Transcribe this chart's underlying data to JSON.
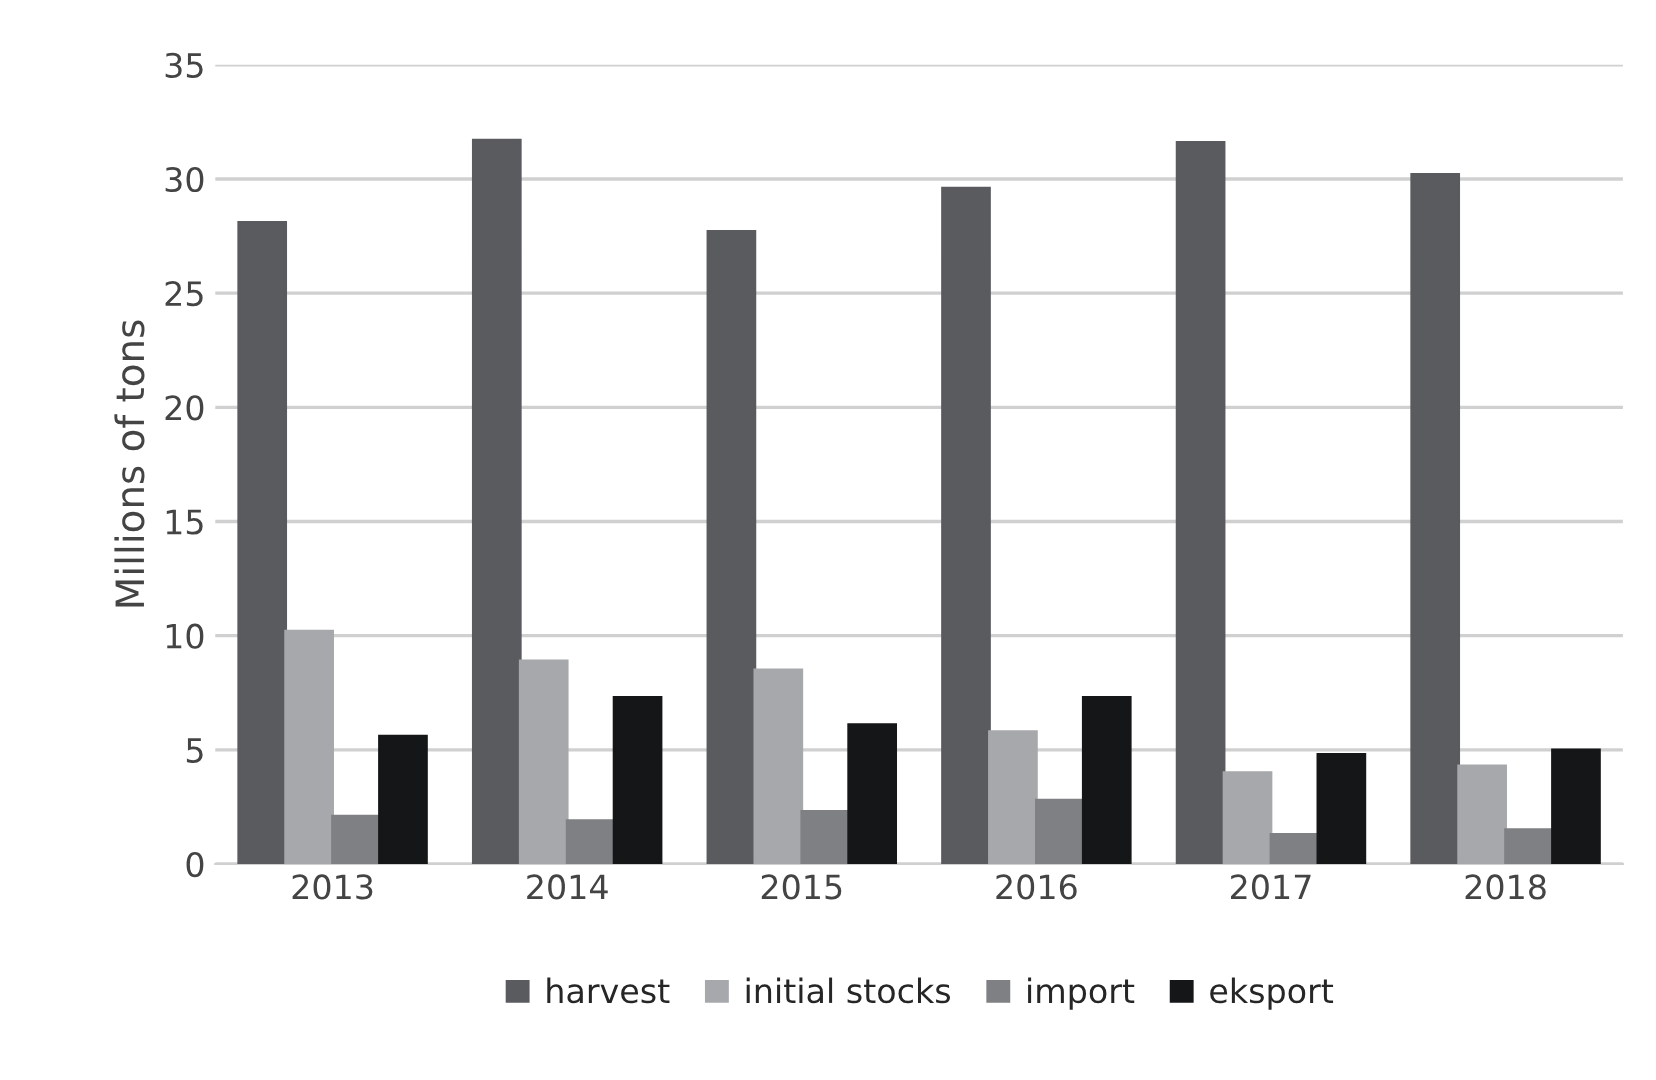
{
  "chart_data": {
    "type": "bar",
    "ylabel": "Millions of tons",
    "categories": [
      "2013",
      "2014",
      "2015",
      "2016",
      "2017",
      "2018"
    ],
    "series": [
      {
        "name": "harvest",
        "color": "#5a5b5f",
        "values": [
          28.1,
          31.7,
          27.7,
          29.6,
          31.6,
          30.2
        ]
      },
      {
        "name": "initial stocks",
        "color": "#a6a8ab",
        "values": [
          10.2,
          8.9,
          8.5,
          5.8,
          4.0,
          4.3
        ]
      },
      {
        "name": "import",
        "color": "#7f8083",
        "values": [
          2.1,
          1.9,
          2.3,
          2.8,
          1.3,
          1.5
        ]
      },
      {
        "name": "eksport",
        "color": "#151617",
        "values": [
          5.6,
          7.3,
          6.1,
          7.3,
          4.8,
          5.0
        ]
      }
    ],
    "ylim": [
      0,
      35
    ],
    "yticks": [
      0,
      5,
      10,
      15,
      20,
      25,
      30,
      35
    ],
    "grid": "y",
    "legend": "bottom"
  }
}
